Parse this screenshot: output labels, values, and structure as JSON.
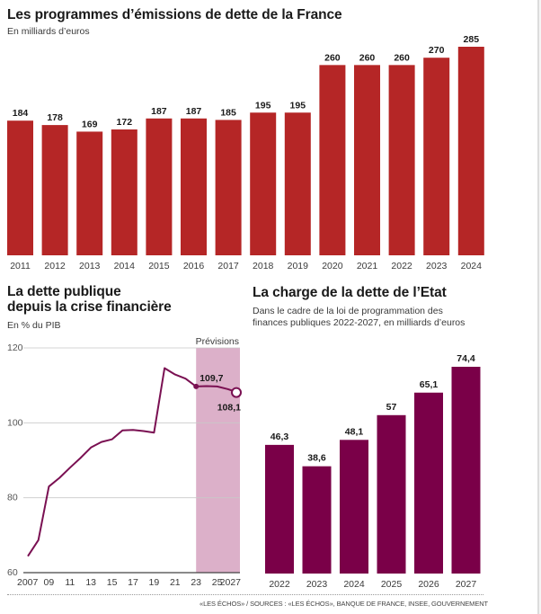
{
  "colors": {
    "emissions_bar": "#b52626",
    "debt_line": "#7a1052",
    "forecast_band": "#dcb0c9",
    "charge_bar": "#7a0048",
    "gridline": "#c8c8c8",
    "axis": "#555555"
  },
  "footer": {
    "source": "«LES ÉCHOS» / SOURCES : «LES ÉCHOS», BANQUE DE FRANCE, INSEE, GOUVERNEMENT"
  },
  "chart_data": [
    {
      "type": "bar",
      "title": "Les programmes d’émissions de dette de la France",
      "subtitle": "En milliards d’euros",
      "xlabel": "",
      "ylabel": "",
      "categories": [
        "2011",
        "2012",
        "2013",
        "2014",
        "2015",
        "2016",
        "2017",
        "2018",
        "2019",
        "2020",
        "2021",
        "2022",
        "2023",
        "2024"
      ],
      "values": [
        184,
        178,
        169,
        172,
        187,
        187,
        185,
        195,
        195,
        260,
        260,
        260,
        270,
        285
      ],
      "data_labels": [
        "184",
        "178",
        "169",
        "172",
        "187",
        "187",
        "185",
        "195",
        "195",
        "260",
        "260",
        "260",
        "270",
        "285"
      ],
      "ylim": [
        0,
        300
      ],
      "grid": false,
      "legend": "none"
    },
    {
      "type": "line",
      "title": "La dette publique depuis la crise financière",
      "title_lines": [
        "La dette publique",
        "depuis la crise financière"
      ],
      "subtitle": "En % du PIB",
      "xlabel": "",
      "ylabel": "",
      "x": [
        2007,
        2008,
        2009,
        2010,
        2011,
        2012,
        2013,
        2014,
        2015,
        2016,
        2017,
        2018,
        2019,
        2020,
        2021,
        2022,
        2023,
        2024,
        2025,
        2026,
        2027
      ],
      "series": [
        {
          "name": "Dette publique (% du PIB)",
          "values": [
            64.4,
            68.7,
            83.0,
            85.3,
            88.0,
            90.6,
            93.4,
            94.9,
            95.6,
            98.0,
            98.1,
            97.8,
            97.4,
            114.6,
            112.9,
            111.8,
            109.7,
            109.8,
            109.7,
            109.0,
            108.1
          ]
        }
      ],
      "x_tick_labels": [
        "2007",
        "09",
        "11",
        "13",
        "15",
        "17",
        "19",
        "21",
        "23",
        "25",
        "2027"
      ],
      "x_ticks": [
        2007,
        2009,
        2011,
        2013,
        2015,
        2017,
        2019,
        2021,
        2023,
        2025,
        2027
      ],
      "y_ticks": [
        60,
        80,
        100,
        120
      ],
      "y_tick_labels": [
        "60",
        "80",
        "100",
        "120"
      ],
      "ylim": [
        60,
        120
      ],
      "xlim": [
        2007,
        2027
      ],
      "grid": true,
      "forecast_band": {
        "from": 2023,
        "to": 2027,
        "label": "Prévisions"
      },
      "annotations": [
        {
          "x": 2023,
          "y": 109.7,
          "label": "109,7",
          "marker": "filled"
        },
        {
          "x": 2027,
          "y": 108.1,
          "label": "108,1",
          "marker": "open"
        }
      ],
      "legend": "none"
    },
    {
      "type": "bar",
      "title": "La charge de la dette de l’Etat",
      "subtitle_lines": [
        "Dans le cadre de la loi de programmation des",
        "finances publiques 2022-2027, en milliards d’euros"
      ],
      "xlabel": "",
      "ylabel": "",
      "categories": [
        "2022",
        "2023",
        "2024",
        "2025",
        "2026",
        "2027"
      ],
      "values": [
        46.3,
        38.6,
        48.1,
        57,
        65.1,
        74.4
      ],
      "data_labels": [
        "46,3",
        "38,6",
        "48,1",
        "57",
        "65,1",
        "74,4"
      ],
      "ylim": [
        0,
        80
      ],
      "grid": false,
      "legend": "none"
    }
  ]
}
